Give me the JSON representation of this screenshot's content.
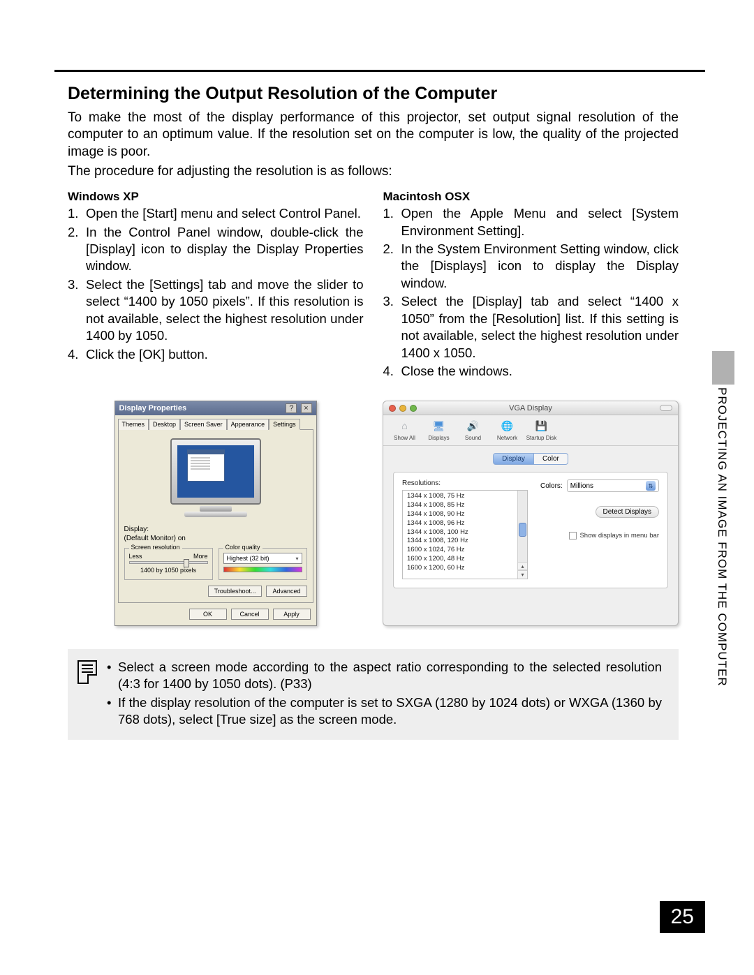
{
  "page": {
    "title": "Determining the Output Resolution of the Computer",
    "intro1": "To make the most of the display performance of this projector, set output signal resolution of the computer to an optimum value. If the resolution set on the computer is low, the quality of the projected image is poor.",
    "intro2": "The procedure for adjusting the resolution is as follows:",
    "side_label": "PROJECTING AN IMAGE FROM THE COMPUTER",
    "page_number": "25"
  },
  "windows": {
    "heading": "Windows XP",
    "steps": [
      "Open the [Start] menu and select Control Panel.",
      "In the Control Panel window, double-click the [Display] icon to display the Display Properties window.",
      "Select the [Settings] tab and move the slider to select “1400 by 1050 pixels”. If this resolution is not available, select the highest resolution under 1400 by 1050.",
      "Click the [OK] button."
    ],
    "dialog": {
      "title": "Display Properties",
      "tabs": [
        "Themes",
        "Desktop",
        "Screen Saver",
        "Appearance",
        "Settings"
      ],
      "active_tab": 4,
      "display_label": "Display:",
      "display_value": "(Default Monitor) on",
      "group_resolution": "Screen resolution",
      "less": "Less",
      "more": "More",
      "resolution_value": "1400 by 1050 pixels",
      "group_color": "Color quality",
      "color_value": "Highest (32 bit)",
      "btn_troubleshoot": "Troubleshoot...",
      "btn_advanced": "Advanced",
      "btn_ok": "OK",
      "btn_cancel": "Cancel",
      "btn_apply": "Apply",
      "btn_help": "?",
      "btn_close": "×"
    }
  },
  "mac": {
    "heading": "Macintosh OSX",
    "steps": [
      "Open the Apple Menu and select [System Environment Setting].",
      "In the System Environment Setting window, click the [Displays] icon to display the Display window.",
      "Select the [Display] tab and select “1400 x 1050” from the [Resolution] list. If this setting is not available, select the highest resolution under 1400 x 1050.",
      "Close the windows."
    ],
    "dialog": {
      "title": "VGA Display",
      "lights": [
        "#e8604c",
        "#e9b43b",
        "#71b84c"
      ],
      "toolbar": [
        {
          "label": "Show All",
          "icon": "⌂",
          "color": "#9aa0a6"
        },
        {
          "label": "Displays",
          "icon": "🖥",
          "color": "#4a90d9"
        },
        {
          "label": "Sound",
          "icon": "🔊",
          "color": "#8a6b9e"
        },
        {
          "label": "Network",
          "icon": "🌐",
          "color": "#56728e"
        },
        {
          "label": "Startup Disk",
          "icon": "💾",
          "color": "#a0a0a0"
        }
      ],
      "segments": [
        "Display",
        "Color"
      ],
      "active_segment": 0,
      "res_label": "Resolutions:",
      "resolutions": [
        "1344 x 1008, 75 Hz",
        "1344 x 1008, 85 Hz",
        "1344 x 1008, 90 Hz",
        "1344 x 1008, 96 Hz",
        "1344 x 1008, 100 Hz",
        "1344 x 1008, 120 Hz",
        "1600 x 1024, 76 Hz",
        "1600 x 1200, 48 Hz",
        "1600 x 1200, 60 Hz"
      ],
      "colors_label": "Colors:",
      "colors_value": "Millions",
      "detect_btn": "Detect Displays",
      "menubar_check": "Show displays in menu bar"
    }
  },
  "note": {
    "items": [
      "Select a screen mode according to the aspect ratio corresponding to the selected resolution (4:3 for 1400 by 1050 dots). (P33)",
      "If the display resolution of the computer is set to SXGA (1280 by 1024 dots) or WXGA (1360 by 768 dots), select [True size] as the screen mode."
    ]
  }
}
